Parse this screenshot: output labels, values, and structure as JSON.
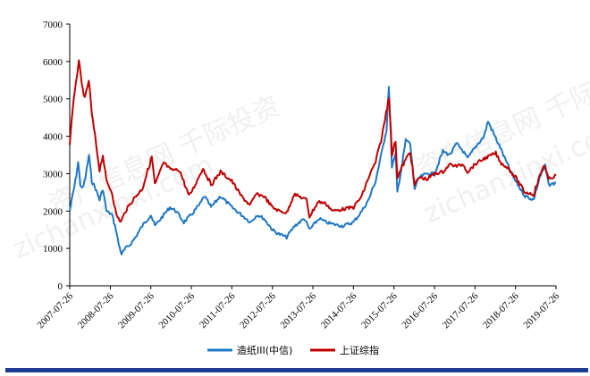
{
  "chart_data": {
    "type": "line",
    "title": "",
    "xlabel": "",
    "ylabel": "",
    "ylim": [
      0,
      7000
    ],
    "y_ticks": [
      "0",
      "1000",
      "2000",
      "3000",
      "4000",
      "5000",
      "6000",
      "7000"
    ],
    "x_tick_labels": [
      "2007-07-26",
      "2008-07-26",
      "2009-07-26",
      "2010-07-26",
      "2011-07-26",
      "2012-07-26",
      "2013-07-26",
      "2014-07-26",
      "2015-07-26",
      "2016-07-26",
      "2017-07-26",
      "2018-07-26",
      "2019-07-26"
    ],
    "x_range": [
      "2007-07-26",
      "2019-07-26"
    ],
    "grid": false,
    "legend_position": "bottom-center",
    "series": [
      {
        "name": "造纸III(中信)",
        "color": "#1f77c4",
        "points": [
          [
            "2007-07-26",
            2000
          ],
          [
            "2007-08-20",
            2400
          ],
          [
            "2007-09-15",
            2800
          ],
          [
            "2007-10-10",
            3300
          ],
          [
            "2007-10-30",
            2700
          ],
          [
            "2007-11-20",
            2600
          ],
          [
            "2007-12-15",
            2900
          ],
          [
            "2008-01-15",
            3500
          ],
          [
            "2008-02-10",
            2800
          ],
          [
            "2008-03-15",
            2600
          ],
          [
            "2008-04-20",
            2300
          ],
          [
            "2008-05-20",
            2600
          ],
          [
            "2008-06-20",
            2000
          ],
          [
            "2008-08-10",
            1900
          ],
          [
            "2008-09-15",
            1500
          ],
          [
            "2008-10-10",
            1100
          ],
          [
            "2008-11-05",
            850
          ],
          [
            "2008-12-10",
            1000
          ],
          [
            "2009-01-20",
            1100
          ],
          [
            "2009-03-10",
            1300
          ],
          [
            "2009-05-10",
            1600
          ],
          [
            "2009-07-26",
            1900
          ],
          [
            "2009-09-01",
            1600
          ],
          [
            "2009-11-20",
            1900
          ],
          [
            "2010-01-15",
            2100
          ],
          [
            "2010-03-10",
            2000
          ],
          [
            "2010-05-20",
            1700
          ],
          [
            "2010-07-26",
            1900
          ],
          [
            "2010-10-15",
            2200
          ],
          [
            "2010-11-20",
            2400
          ],
          [
            "2011-01-20",
            2100
          ],
          [
            "2011-04-15",
            2400
          ],
          [
            "2011-07-26",
            2100
          ],
          [
            "2011-10-20",
            1900
          ],
          [
            "2012-01-10",
            1700
          ],
          [
            "2012-03-10",
            1900
          ],
          [
            "2012-05-10",
            1800
          ],
          [
            "2012-07-26",
            1500
          ],
          [
            "2012-09-10",
            1400
          ],
          [
            "2012-12-01",
            1300
          ],
          [
            "2013-02-10",
            1600
          ],
          [
            "2013-05-10",
            1800
          ],
          [
            "2013-06-25",
            1500
          ],
          [
            "2013-09-20",
            1800
          ],
          [
            "2013-11-20",
            1700
          ],
          [
            "2014-01-20",
            1650
          ],
          [
            "2014-04-20",
            1600
          ],
          [
            "2014-07-26",
            1700
          ],
          [
            "2014-10-10",
            2000
          ],
          [
            "2014-12-10",
            2300
          ],
          [
            "2015-02-10",
            2800
          ],
          [
            "2015-04-10",
            3600
          ],
          [
            "2015-05-20",
            4200
          ],
          [
            "2015-06-10",
            5400
          ],
          [
            "2015-07-08",
            3200
          ],
          [
            "2015-08-10",
            3500
          ],
          [
            "2015-08-26",
            2500
          ],
          [
            "2015-10-10",
            3300
          ],
          [
            "2015-11-10",
            3900
          ],
          [
            "2015-12-20",
            3800
          ],
          [
            "2016-01-28",
            2600
          ],
          [
            "2016-03-10",
            2900
          ],
          [
            "2016-05-20",
            3000
          ],
          [
            "2016-07-26",
            3000
          ],
          [
            "2016-10-10",
            3600
          ],
          [
            "2016-12-10",
            3500
          ],
          [
            "2017-02-10",
            3800
          ],
          [
            "2017-04-10",
            3600
          ],
          [
            "2017-05-20",
            3400
          ],
          [
            "2017-07-26",
            3700
          ],
          [
            "2017-10-15",
            4000
          ],
          [
            "2017-11-20",
            4400
          ],
          [
            "2018-01-20",
            4000
          ],
          [
            "2018-03-10",
            3700
          ],
          [
            "2018-05-20",
            3200
          ],
          [
            "2018-07-26",
            2800
          ],
          [
            "2018-10-20",
            2400
          ],
          [
            "2019-01-05",
            2300
          ],
          [
            "2019-03-01",
            2900
          ],
          [
            "2019-04-20",
            3200
          ],
          [
            "2019-05-20",
            2700
          ],
          [
            "2019-07-26",
            2750
          ]
        ]
      },
      {
        "name": "上证综指",
        "color": "#c00000",
        "points": [
          [
            "2007-07-26",
            3800
          ],
          [
            "2007-08-20",
            4700
          ],
          [
            "2007-09-20",
            5400
          ],
          [
            "2007-10-16",
            6050
          ],
          [
            "2007-11-10",
            5400
          ],
          [
            "2007-12-10",
            5000
          ],
          [
            "2008-01-14",
            5500
          ],
          [
            "2008-02-10",
            4600
          ],
          [
            "2008-03-10",
            4000
          ],
          [
            "2008-04-20",
            3100
          ],
          [
            "2008-05-20",
            3500
          ],
          [
            "2008-06-20",
            2800
          ],
          [
            "2008-08-10",
            2500
          ],
          [
            "2008-09-18",
            1900
          ],
          [
            "2008-10-28",
            1700
          ],
          [
            "2008-12-10",
            2000
          ],
          [
            "2009-02-15",
            2300
          ],
          [
            "2009-05-10",
            2600
          ],
          [
            "2009-08-04",
            3450
          ],
          [
            "2009-09-01",
            2700
          ],
          [
            "2009-11-20",
            3300
          ],
          [
            "2010-01-20",
            3100
          ],
          [
            "2010-04-10",
            3100
          ],
          [
            "2010-07-05",
            2400
          ],
          [
            "2010-08-20",
            2650
          ],
          [
            "2010-11-08",
            3150
          ],
          [
            "2011-01-20",
            2700
          ],
          [
            "2011-04-15",
            3050
          ],
          [
            "2011-07-26",
            2800
          ],
          [
            "2011-10-20",
            2400
          ],
          [
            "2012-01-06",
            2150
          ],
          [
            "2012-03-01",
            2450
          ],
          [
            "2012-05-10",
            2400
          ],
          [
            "2012-07-26",
            2100
          ],
          [
            "2012-09-26",
            2000
          ],
          [
            "2012-12-03",
            1950
          ],
          [
            "2013-02-05",
            2450
          ],
          [
            "2013-05-30",
            2300
          ],
          [
            "2013-06-25",
            1850
          ],
          [
            "2013-09-12",
            2250
          ],
          [
            "2013-11-20",
            2200
          ],
          [
            "2014-01-20",
            2000
          ],
          [
            "2014-04-20",
            2050
          ],
          [
            "2014-07-26",
            2100
          ],
          [
            "2014-10-10",
            2400
          ],
          [
            "2014-12-10",
            2900
          ],
          [
            "2015-02-10",
            3300
          ],
          [
            "2015-04-10",
            4000
          ],
          [
            "2015-06-12",
            5100
          ],
          [
            "2015-07-08",
            3500
          ],
          [
            "2015-08-10",
            3900
          ],
          [
            "2015-08-26",
            2900
          ],
          [
            "2015-10-10",
            3200
          ],
          [
            "2015-12-20",
            3600
          ],
          [
            "2016-01-28",
            2700
          ],
          [
            "2016-03-10",
            2900
          ],
          [
            "2016-05-20",
            2850
          ],
          [
            "2016-07-26",
            3000
          ],
          [
            "2016-10-10",
            3050
          ],
          [
            "2016-12-10",
            3250
          ],
          [
            "2017-02-10",
            3200
          ],
          [
            "2017-04-10",
            3250
          ],
          [
            "2017-05-20",
            3050
          ],
          [
            "2017-07-26",
            3250
          ],
          [
            "2017-10-15",
            3400
          ],
          [
            "2018-01-29",
            3550
          ],
          [
            "2018-03-10",
            3300
          ],
          [
            "2018-05-20",
            3150
          ],
          [
            "2018-07-26",
            2900
          ],
          [
            "2018-10-18",
            2500
          ],
          [
            "2019-01-04",
            2450
          ],
          [
            "2019-04-08",
            3250
          ],
          [
            "2019-05-20",
            2850
          ],
          [
            "2019-07-26",
            2950
          ]
        ]
      }
    ]
  },
  "watermark": {
    "text1": "资产信息网 千际投资",
    "text2": "zichanxinxi.com"
  }
}
